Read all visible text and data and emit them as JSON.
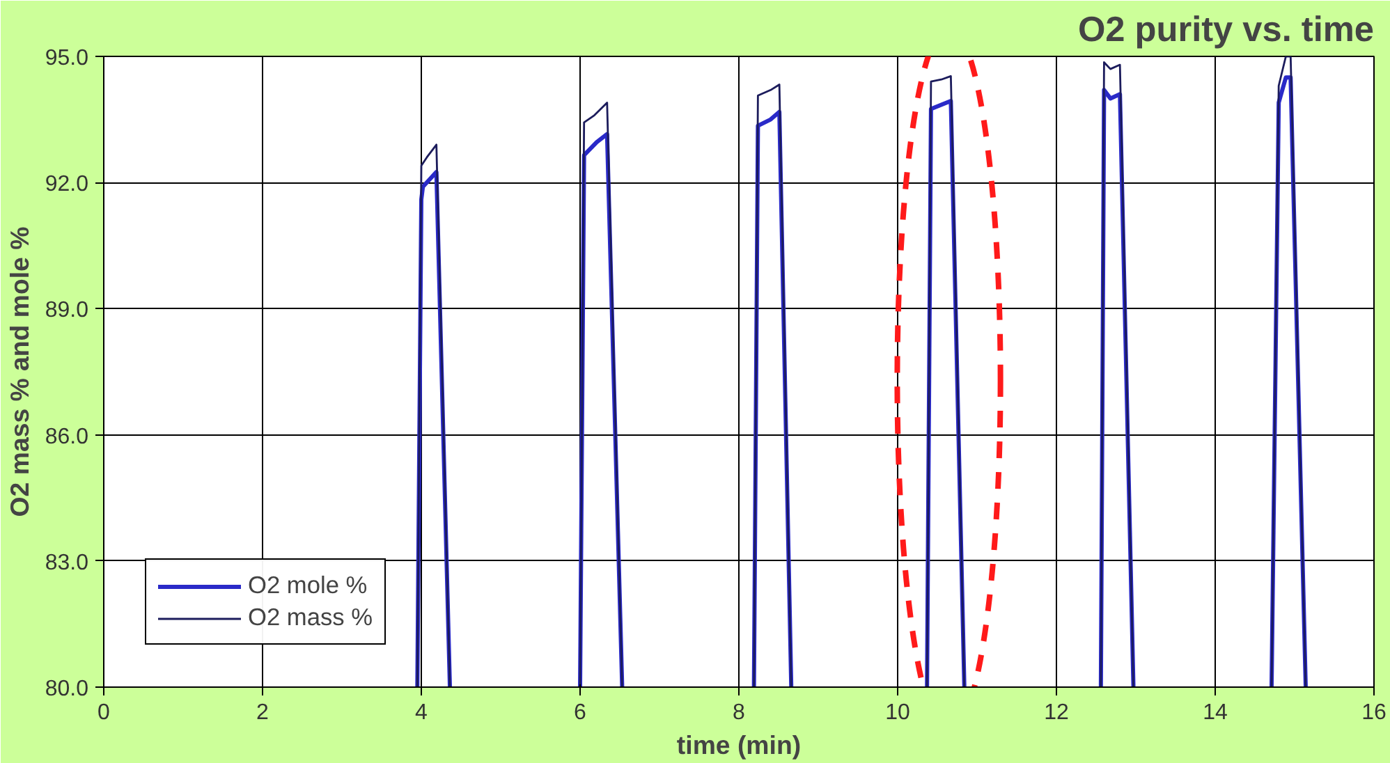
{
  "chart_data": {
    "type": "line",
    "title": "O2 purity vs. time",
    "xlabel": "time (min)",
    "ylabel": "O2 mass % and mole %",
    "xlim": [
      0,
      16
    ],
    "xticks": [
      0,
      2,
      4,
      6,
      8,
      10,
      12,
      14,
      16
    ],
    "ylim": [
      80,
      95
    ],
    "yticks": [
      {
        "value": 80,
        "label": "80.0"
      },
      {
        "value": 83,
        "label": "83.0"
      },
      {
        "value": 86,
        "label": "86.0"
      },
      {
        "value": 89,
        "label": "89.0"
      },
      {
        "value": 92,
        "label": "92.0"
      },
      {
        "value": 95,
        "label": "95.0"
      }
    ],
    "grid": true,
    "legend": "bottom left",
    "marker": "none",
    "line_style": "solid",
    "series": [
      {
        "name": "O2 mole %",
        "color": "#2a2ac8",
        "x": [
          3.95,
          4.0,
          4.02,
          4.19,
          4.36,
          null,
          6.0,
          6.05,
          6.21,
          6.34,
          6.53,
          null,
          8.19,
          8.24,
          8.4,
          8.51,
          8.66,
          null,
          10.37,
          10.42,
          10.55,
          10.67,
          10.84,
          null,
          12.56,
          12.6,
          12.68,
          12.8,
          12.97,
          null,
          14.71,
          14.8,
          14.89,
          14.95,
          15.14
        ],
        "values": [
          80,
          91.6,
          91.9,
          92.25,
          80,
          null,
          80,
          92.65,
          92.96,
          93.15,
          80,
          null,
          80,
          93.35,
          93.5,
          93.68,
          80,
          null,
          80,
          93.75,
          93.85,
          93.94,
          80,
          null,
          80,
          94.2,
          94.0,
          94.1,
          80,
          null,
          80,
          93.9,
          94.5,
          94.5,
          80
        ]
      },
      {
        "name": "O2 mass %",
        "color": "#1c1c5c",
        "x": [
          3.95,
          4.0,
          4.07,
          4.19,
          4.36,
          null,
          6.0,
          6.05,
          6.18,
          6.34,
          6.53,
          null,
          8.19,
          8.24,
          8.4,
          8.51,
          8.66,
          null,
          10.37,
          10.42,
          10.55,
          10.67,
          10.84,
          null,
          12.56,
          12.6,
          12.68,
          12.8,
          12.97,
          null,
          14.71,
          14.8,
          14.89,
          14.95,
          15.14
        ],
        "values": [
          80,
          92.4,
          92.6,
          92.9,
          80,
          null,
          80,
          93.43,
          93.6,
          93.9,
          80,
          null,
          80,
          94.07,
          94.2,
          94.33,
          80,
          null,
          80,
          94.4,
          94.45,
          94.53,
          80,
          null,
          80,
          94.86,
          94.7,
          94.8,
          80,
          null,
          80,
          94.3,
          95.0,
          95.0,
          80
        ]
      }
    ]
  }
}
